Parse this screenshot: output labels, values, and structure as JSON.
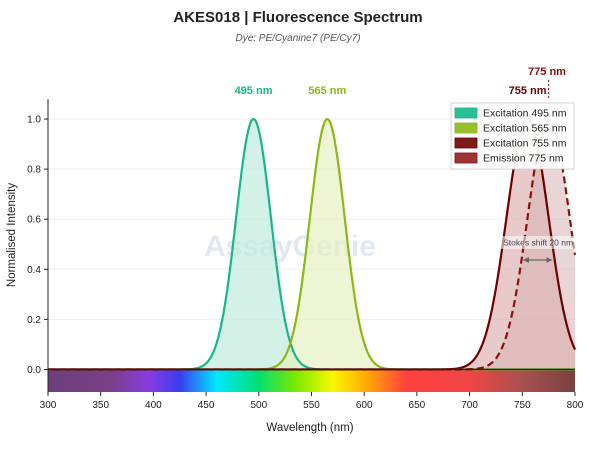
{
  "chart_data": {
    "type": "line",
    "title": "AKES018  |  Fluorescence Spectrum",
    "subtitle": "Dye: PE/Cyanine7 (PE/Cy7)",
    "xlabel": "Wavelength (nm)",
    "ylabel": "Normalised Intensity",
    "xlim": [
      300,
      800
    ],
    "ylim": [
      -0.09,
      1.08
    ],
    "x_ticks": [
      "300",
      "350",
      "400",
      "450",
      "500",
      "550",
      "600",
      "650",
      "700",
      "750",
      "800"
    ],
    "y_ticks": [
      "0.0",
      "0.2",
      "0.4",
      "0.6",
      "0.8",
      "1.0"
    ],
    "grid": true,
    "legend_position": "top-right",
    "watermark": "AssayGenie",
    "series": [
      {
        "name": "Excitation  495 nm",
        "kind": "excitation",
        "peak": 495,
        "sigma": 16.5,
        "stroke": "#14b88a",
        "fill": "#bde9db",
        "dashed": false
      },
      {
        "name": "Excitation  565 nm",
        "kind": "excitation",
        "peak": 565,
        "sigma": 16.5,
        "stroke": "#8cb816",
        "fill": "#e5efbe",
        "dashed": false
      },
      {
        "name": "Excitation  755 nm",
        "kind": "excitation",
        "peak": 755,
        "sigma": 20,
        "stroke": "#6e0000",
        "fill": "#dcaeae",
        "dashed": false
      },
      {
        "name": "Emission  775 nm",
        "kind": "emission",
        "peak": 775,
        "sigma": 20,
        "stroke": "#8b1010",
        "fill": "#d7b3b3",
        "dashed": true
      }
    ],
    "peak_labels": [
      {
        "text": "495 nm",
        "x": 495,
        "color": "#14b88a",
        "row": "low"
      },
      {
        "text": "565 nm",
        "x": 565,
        "color": "#8cb816",
        "row": "low"
      },
      {
        "text": "755 nm",
        "x": 755,
        "color": "#6e0000",
        "row": "low"
      },
      {
        "text": "775 nm",
        "x": 775,
        "color": "#8b1010",
        "row": "high"
      }
    ],
    "stokes_shift": {
      "label": "Stokes shift  20 nm",
      "from": 755,
      "to": 775
    }
  }
}
